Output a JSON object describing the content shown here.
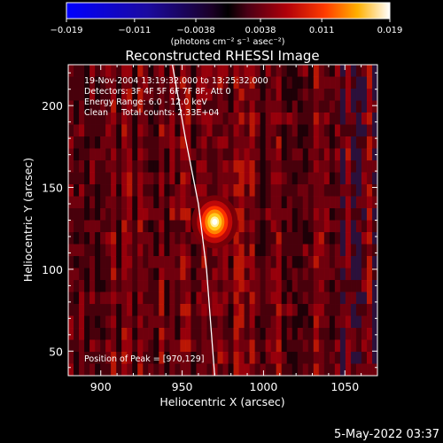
{
  "chart_data": {
    "type": "heatmap",
    "title": "Reconstructed RHESSI Image",
    "xlabel": "Heliocentric X (arcsec)",
    "ylabel": "Heliocentric Y (arcsec)",
    "xlim": [
      880,
      1070
    ],
    "ylim": [
      35,
      225
    ],
    "x_ticks": [
      900,
      950,
      1000,
      1050
    ],
    "y_ticks": [
      50,
      100,
      150,
      200
    ],
    "colorbar": {
      "range": [
        -0.019,
        0.019
      ],
      "tick_values": [
        -0.019,
        -0.011,
        -0.0038,
        0.0038,
        0.011,
        0.019
      ],
      "tick_labels": [
        "−0.019",
        "−0.011",
        "−0.0038",
        "0.0038",
        "0.011",
        "0.019"
      ],
      "units_label": "(photons cm⁻² s⁻¹ asec⁻²)"
    },
    "annotations": [
      "19-Nov-2004 13:19:32.000 to 13:25:32.000",
      "Detectors: 3F 4F 5F 6F 7F 8F, Att 0",
      "Energy Range: 6.0 - 12.0 keV",
      "Clean     Total counts: 2.33E+04"
    ],
    "peak_label": "Position of Peak = [970,129]",
    "peak": {
      "x": 970,
      "y": 129,
      "value": 0.019
    },
    "limb_curve": [
      [
        944,
        225
      ],
      [
        952,
        180
      ],
      [
        960,
        140
      ],
      [
        965,
        100
      ],
      [
        970,
        35
      ]
    ]
  },
  "footer": {
    "timestamp": "5-May-2022 03:37"
  },
  "colors": {
    "background": "#000000",
    "text": "#ffffff",
    "limb": "#ffffff"
  },
  "plot": {
    "grid": false
  }
}
